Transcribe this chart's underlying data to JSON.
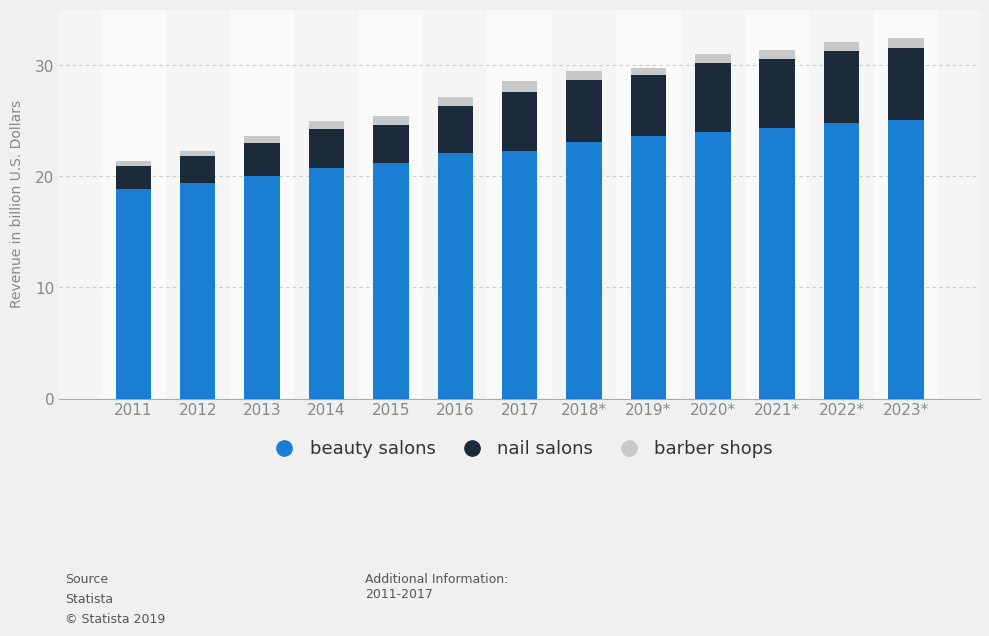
{
  "years": [
    "2011",
    "2012",
    "2013",
    "2014",
    "2015",
    "2016",
    "2017",
    "2018*",
    "2019*",
    "2020*",
    "2021*",
    "2022*",
    "2023*"
  ],
  "beauty_salons": [
    18.9,
    19.4,
    20.0,
    20.8,
    21.2,
    22.1,
    22.3,
    23.1,
    23.6,
    24.0,
    24.4,
    24.8,
    25.1
  ],
  "nail_salons": [
    2.0,
    2.4,
    3.0,
    3.5,
    3.4,
    4.2,
    5.3,
    5.6,
    5.5,
    6.2,
    6.2,
    6.5,
    6.5
  ],
  "barber_shops": [
    0.5,
    0.5,
    0.6,
    0.7,
    0.8,
    0.9,
    1.0,
    0.8,
    0.7,
    0.8,
    0.8,
    0.8,
    0.9
  ],
  "beauty_color": "#1a7fd4",
  "nail_color": "#1c2b3a",
  "barber_color": "#c8c8c8",
  "bg_color": "#f0f0f0",
  "plot_bg_color": "#f5f5f5",
  "col_highlight_color": "#ffffff",
  "ylabel": "Revenue in billion U.S. Dollars",
  "ylim": [
    0,
    35
  ],
  "yticks": [
    0,
    10,
    20,
    30
  ],
  "legend_labels": [
    "beauty salons",
    "nail salons",
    "barber shops"
  ],
  "source_text": "Source\nStatista\n© Statista 2019",
  "additional_info_title": "Additional Information:",
  "additional_info_body": "2011-2017",
  "grid_color": "#cccccc",
  "tick_color": "#888888"
}
